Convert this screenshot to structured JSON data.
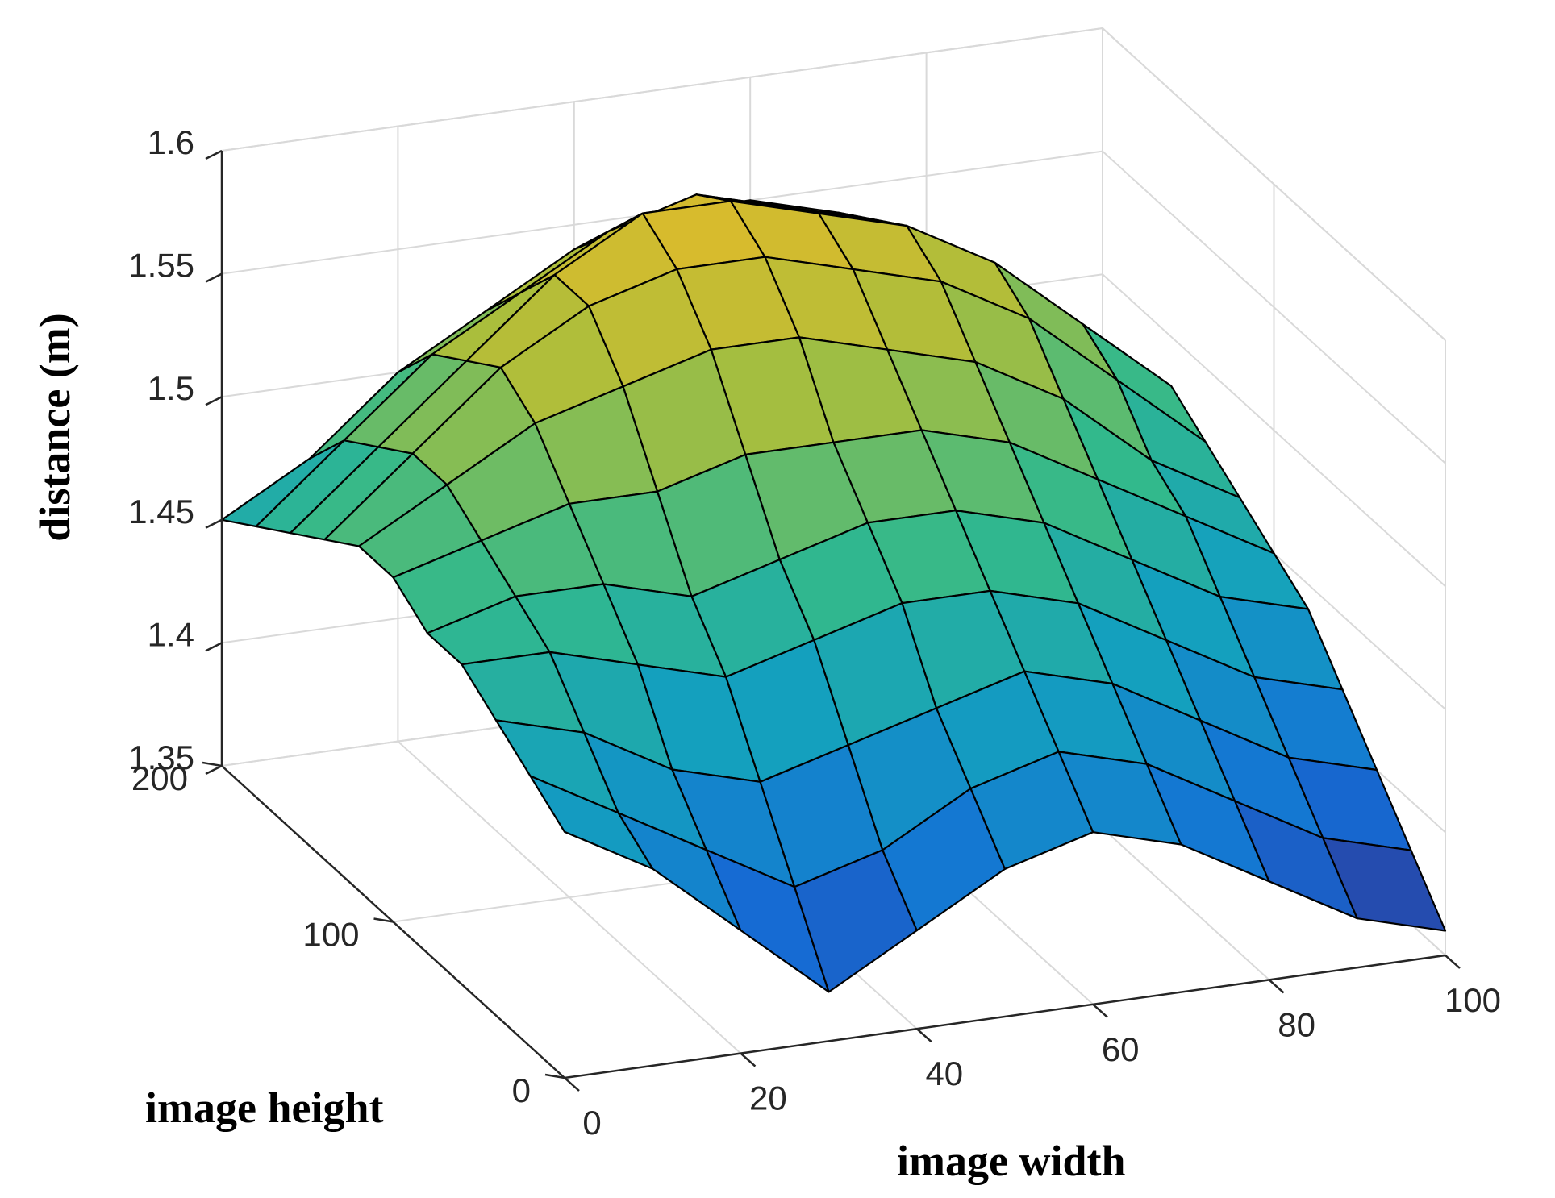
{
  "chart_data": {
    "type": "surface",
    "title": "",
    "xlabel": "image width",
    "ylabel": "image height",
    "zlabel": "distance (m)",
    "xlim": [
      0,
      100
    ],
    "ylim": [
      0,
      200
    ],
    "zlim": [
      1.35,
      1.6
    ],
    "x_ticks": [
      "0",
      "20",
      "40",
      "60",
      "80",
      "100"
    ],
    "y_ticks": [
      "0",
      "100",
      "200"
    ],
    "z_ticks": [
      "1.35",
      "1.4",
      "1.45",
      "1.5",
      "1.55",
      "1.6"
    ],
    "grid": true,
    "colormap": "parula",
    "colors": {
      "mesh": "#000000",
      "grid": "#d9d9d9",
      "axis": "#262626",
      "low": "#3a1c8f",
      "mid": "#1ea79a",
      "high": "#f0b521"
    },
    "surface": {
      "x": [
        0,
        10,
        20,
        30,
        40,
        50,
        60,
        70,
        80,
        90,
        100
      ],
      "y": [
        0,
        20,
        40,
        60,
        80,
        100,
        120,
        140,
        160,
        180,
        200
      ],
      "z": [
        [
          1.45,
          1.43,
          1.4,
          1.37,
          1.39,
          1.41,
          1.42,
          1.41,
          1.39,
          1.37,
          1.36
        ],
        [
          1.46,
          1.44,
          1.42,
          1.4,
          1.41,
          1.43,
          1.44,
          1.43,
          1.41,
          1.39,
          1.38
        ],
        [
          1.47,
          1.46,
          1.44,
          1.43,
          1.44,
          1.45,
          1.46,
          1.45,
          1.43,
          1.41,
          1.4
        ],
        [
          1.48,
          1.48,
          1.47,
          1.46,
          1.47,
          1.48,
          1.48,
          1.47,
          1.45,
          1.43,
          1.42
        ],
        [
          1.48,
          1.49,
          1.49,
          1.48,
          1.49,
          1.5,
          1.5,
          1.49,
          1.47,
          1.45,
          1.44
        ],
        [
          1.49,
          1.5,
          1.51,
          1.51,
          1.52,
          1.52,
          1.52,
          1.51,
          1.49,
          1.47,
          1.45
        ],
        [
          1.49,
          1.51,
          1.53,
          1.54,
          1.55,
          1.55,
          1.54,
          1.53,
          1.51,
          1.48,
          1.46
        ],
        [
          1.48,
          1.51,
          1.54,
          1.56,
          1.57,
          1.57,
          1.56,
          1.55,
          1.53,
          1.5,
          1.47
        ],
        [
          1.47,
          1.5,
          1.53,
          1.56,
          1.58,
          1.58,
          1.57,
          1.56,
          1.54,
          1.51,
          1.48
        ],
        [
          1.46,
          1.49,
          1.52,
          1.54,
          1.56,
          1.57,
          1.56,
          1.55,
          1.53,
          1.5,
          1.47
        ],
        [
          1.45,
          1.47,
          1.5,
          1.52,
          1.54,
          1.55,
          1.55,
          1.54,
          1.52,
          1.49,
          1.46
        ]
      ]
    }
  }
}
